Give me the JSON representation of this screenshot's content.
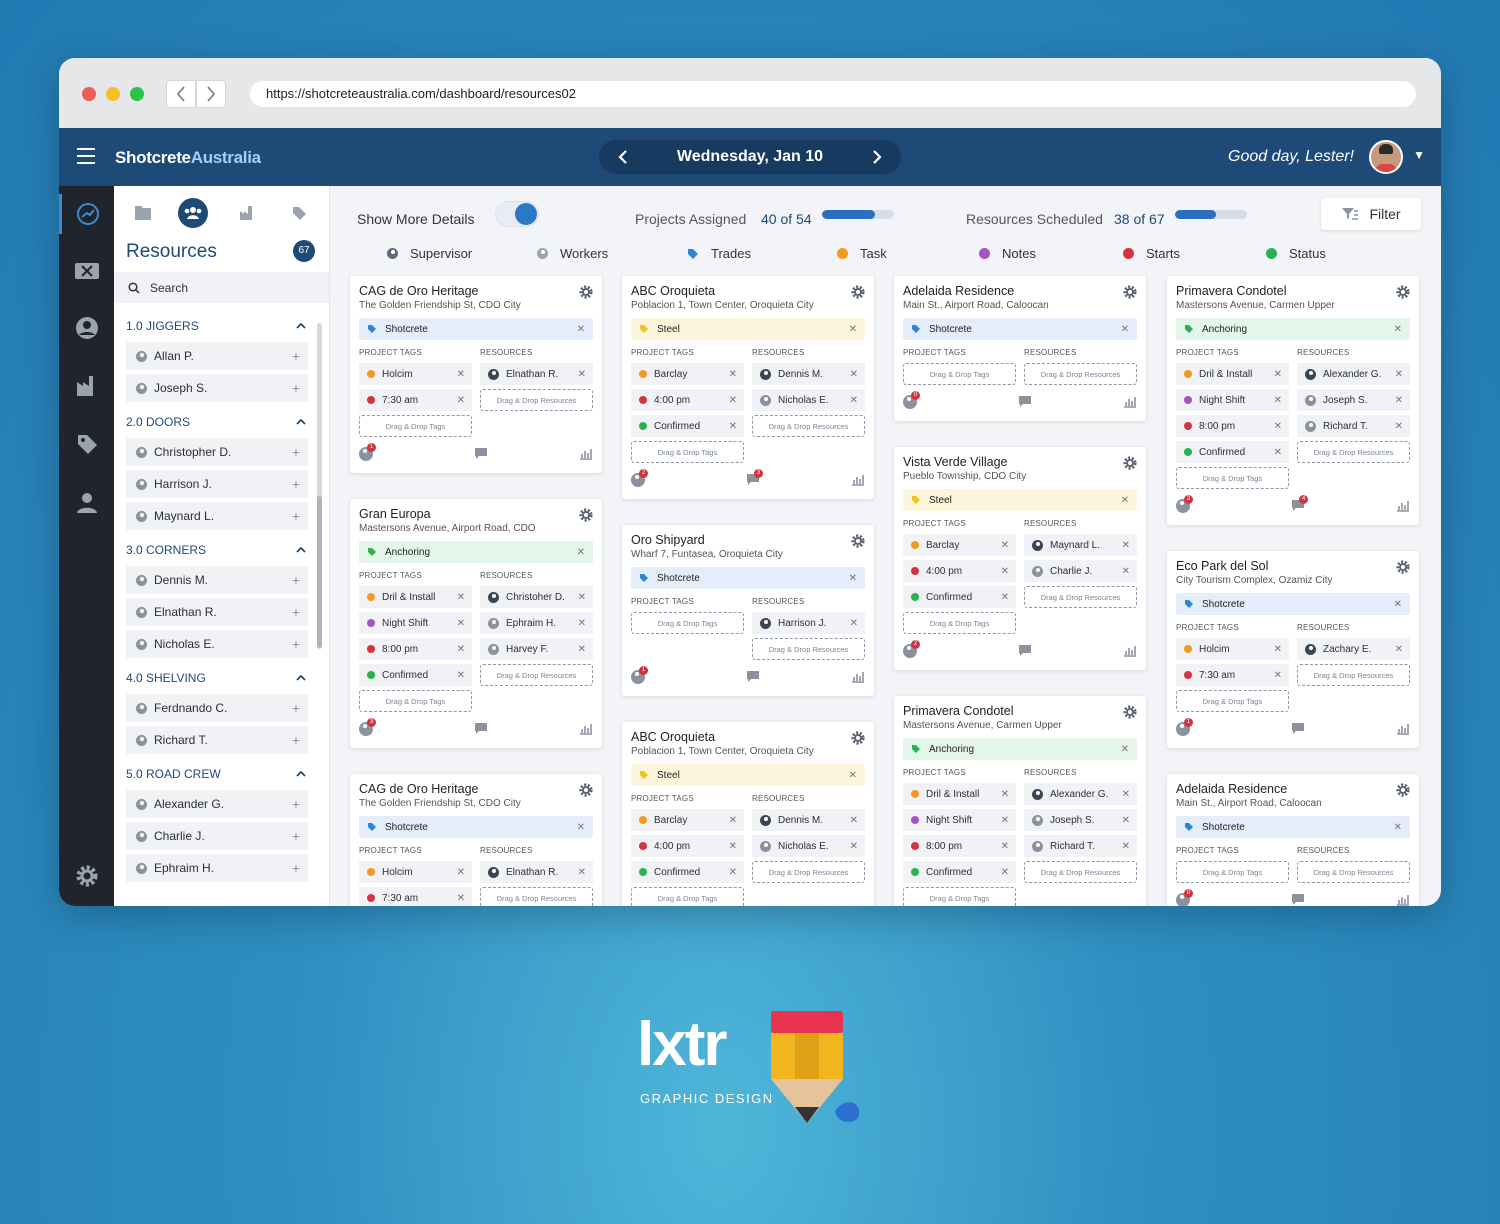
{
  "browser": {
    "url": "https://shotcreteaustralia.com/dashboard/resources02"
  },
  "app": {
    "logo_part1": "Shotcrete",
    "logo_part2": "Australia",
    "date": "Wednesday, Jan 10",
    "greeting": "Good day, Lester!"
  },
  "resources": {
    "title": "Resources",
    "count": "67",
    "search_placeholder": "Search",
    "groups": [
      {
        "name": "1.0 JIGGERS",
        "items": [
          "Allan P.",
          "Joseph S."
        ]
      },
      {
        "name": "2.0 DOORS",
        "items": [
          "Christopher D.",
          "Harrison J.",
          "Maynard L."
        ]
      },
      {
        "name": "3.0 CORNERS",
        "items": [
          "Dennis M.",
          "Elnathan R.",
          "Nicholas E."
        ]
      },
      {
        "name": "4.0 SHELVING",
        "items": [
          "Ferdnando C.",
          "Richard T."
        ]
      },
      {
        "name": "5.0 ROAD CREW",
        "items": [
          "Alexander G.",
          "Charlie J.",
          "Ephraim H."
        ]
      }
    ]
  },
  "summary": {
    "show_more": "Show More Details",
    "projects_label": "Projects Assigned",
    "projects_value": "40 of 54",
    "projects_fraction": 0.74,
    "resources_label": "Resources Scheduled",
    "resources_value": "38 of 67",
    "resources_fraction": 0.57,
    "filter": "Filter"
  },
  "legend": [
    {
      "label": "Supervisor",
      "color": "#5f6b7c",
      "icon": "person-icon"
    },
    {
      "label": "Workers",
      "color": "#9aa3ae",
      "icon": "person-icon"
    },
    {
      "label": "Trades",
      "color": "#2f86d6",
      "icon": "tag-icon"
    },
    {
      "label": "Task",
      "color": "#f29a1f"
    },
    {
      "label": "Notes",
      "color": "#a552c9"
    },
    {
      "label": "Starts",
      "color": "#d8323f"
    },
    {
      "label": "Status",
      "color": "#2bb24c"
    }
  ],
  "labels": {
    "project_tags": "PROJECT TAGS",
    "resources": "RESOURCES",
    "drag_tags": "Drag & Drop Tags",
    "drag_resources": "Drag & Drop Resources"
  },
  "colors": {
    "Shotcrete": "#e3eefa",
    "Steel": "#fdf6dc",
    "Anchoring": "#e4f6ea",
    "icon_Shotcrete": "#2f86d6",
    "icon_Steel": "#f2c318",
    "icon_Anchoring": "#2bb24c"
  },
  "cards": [
    {
      "col": 0,
      "title": "CAG de Oro Heritage",
      "sub": "The Golden Friendship St, CDO City",
      "trade": "Shotcrete",
      "tags": [
        [
          "Holcim",
          "#f29a1f"
        ],
        [
          "7:30 am",
          "#d8323f"
        ]
      ],
      "res": [
        "Elnathan R."
      ],
      "b1": "1",
      "b2": ""
    },
    {
      "col": 0,
      "title": "Gran Europa",
      "sub": "Mastersons Avenue, Airport Road, CDO",
      "trade": "Anchoring",
      "tags": [
        [
          "Dril & Install",
          "#f29a1f"
        ],
        [
          "Night Shift",
          "#a552c9"
        ],
        [
          "8:00 pm",
          "#d8323f"
        ],
        [
          "Confirmed",
          "#2bb24c"
        ]
      ],
      "res": [
        "Christoher D.",
        "Ephraim H.",
        "Harvey F."
      ],
      "b1": "3",
      "b2": ""
    },
    {
      "col": 0,
      "title": "CAG de Oro Heritage",
      "sub": "The Golden Friendship St, CDO City",
      "trade": "Shotcrete",
      "tags": [
        [
          "Holcim",
          "#f29a1f"
        ],
        [
          "7:30 am",
          "#d8323f"
        ]
      ],
      "res": [
        "Elnathan R."
      ],
      "b1": "",
      "b2": ""
    },
    {
      "col": 1,
      "title": "ABC Oroquieta",
      "sub": "Poblacion 1, Town Center, Oroquieta City",
      "trade": "Steel",
      "tags": [
        [
          "Barclay",
          "#f29a1f"
        ],
        [
          "4:00 pm",
          "#d8323f"
        ],
        [
          "Confirmed",
          "#2bb24c"
        ]
      ],
      "res": [
        "Dennis M.",
        "Nicholas E."
      ],
      "b1": "2",
      "b2": "3"
    },
    {
      "col": 1,
      "title": "Oro Shipyard",
      "sub": "Wharf 7, Funtasea, Oroquieta City",
      "trade": "Shotcrete",
      "tags": [],
      "res": [
        "Harrison J."
      ],
      "b1": "1",
      "b2": ""
    },
    {
      "col": 1,
      "title": "ABC Oroquieta",
      "sub": "Poblacion 1, Town Center, Oroquieta City",
      "trade": "Steel",
      "tags": [
        [
          "Barclay",
          "#f29a1f"
        ],
        [
          "4:00 pm",
          "#d8323f"
        ],
        [
          "Confirmed",
          "#2bb24c"
        ]
      ],
      "res": [
        "Dennis M.",
        "Nicholas E."
      ],
      "b1": "",
      "b2": ""
    },
    {
      "col": 2,
      "title": "Adelaida Residence",
      "sub": "Main St., Airport Road, Caloocan",
      "trade": "Shotcrete",
      "tags": [],
      "res": [],
      "b1": "0",
      "b2": ""
    },
    {
      "col": 2,
      "title": "Vista Verde Village",
      "sub": "Pueblo Township, CDO City",
      "trade": "Steel",
      "tags": [
        [
          "Barclay",
          "#f29a1f"
        ],
        [
          "4:00 pm",
          "#d8323f"
        ],
        [
          "Confirmed",
          "#2bb24c"
        ]
      ],
      "res": [
        "Maynard L.",
        "Charlie J."
      ],
      "b1": "2",
      "b2": ""
    },
    {
      "col": 2,
      "title": "Primavera Condotel",
      "sub": "Mastersons Avenue, Carmen Upper",
      "trade": "Anchoring",
      "tags": [
        [
          "Dril & Install",
          "#f29a1f"
        ],
        [
          "Night Shift",
          "#a552c9"
        ],
        [
          "8:00 pm",
          "#d8323f"
        ],
        [
          "Confirmed",
          "#2bb24c"
        ]
      ],
      "res": [
        "Alexander G.",
        "Joseph S.",
        "Richard T."
      ],
      "b1": "",
      "b2": ""
    },
    {
      "col": 3,
      "title": "Primavera Condotel",
      "sub": "Mastersons Avenue, Carmen Upper",
      "trade": "Anchoring",
      "tags": [
        [
          "Dril & Install",
          "#f29a1f"
        ],
        [
          "Night Shift",
          "#a552c9"
        ],
        [
          "8:00 pm",
          "#d8323f"
        ],
        [
          "Confirmed",
          "#2bb24c"
        ]
      ],
      "res": [
        "Alexander G.",
        "Joseph S.",
        "Richard T."
      ],
      "b1": "3",
      "b2": "4"
    },
    {
      "col": 3,
      "title": "Eco Park del Sol",
      "sub": "City Tourism Complex, Ozamiz City",
      "trade": "Shotcrete",
      "tags": [
        [
          "Holcim",
          "#f29a1f"
        ],
        [
          "7:30 am",
          "#d8323f"
        ]
      ],
      "res": [
        "Zachary E."
      ],
      "b1": "1",
      "b2": ""
    },
    {
      "col": 3,
      "title": "Adelaida Residence",
      "sub": "Main St., Airport Road, Caloocan",
      "trade": "Shotcrete",
      "tags": [],
      "res": [],
      "b1": "0",
      "b2": ""
    }
  ],
  "brand": {
    "name": "lxtr",
    "sub": "GRAPHIC DESIGN"
  }
}
